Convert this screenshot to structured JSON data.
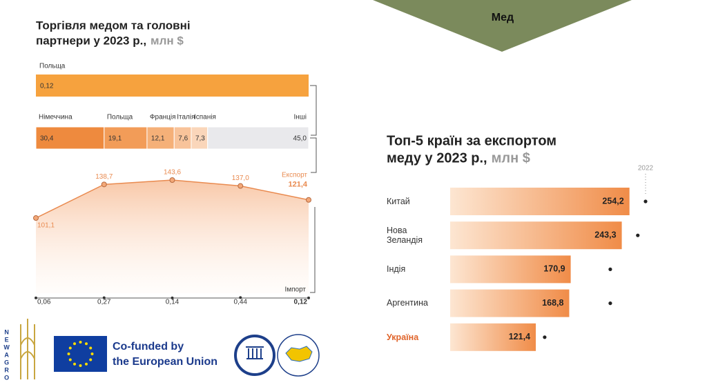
{
  "header": {
    "title": "Мед"
  },
  "chart_data": [
    {
      "type": "line",
      "title_lines": [
        "Торгівля медом та головні",
        "партнери у 2023 р.,"
      ],
      "title_unit": "млн $",
      "import_partners": {
        "categories": [
          "Польща"
        ],
        "values": [
          0.12
        ],
        "value_labels": [
          "0,12"
        ],
        "colors": [
          "#f6a23e"
        ]
      },
      "export_partners": {
        "categories": [
          "Німеччина",
          "Польща",
          "Франція",
          "Італія",
          "Іспанія",
          "Інші"
        ],
        "values": [
          30.4,
          19.1,
          12.1,
          7.6,
          7.3,
          45.0
        ],
        "value_labels": [
          "30,4",
          "19,1",
          "12,1",
          "7,6",
          "7,3",
          "45,0"
        ],
        "colors": [
          "#ee8a3e",
          "#f29c58",
          "#f5b078",
          "#f8c39a",
          "#fad6ba",
          "#e9e9ec"
        ]
      },
      "categories": [
        null,
        null,
        null,
        null,
        null
      ],
      "series": [
        {
          "name": "Експорт",
          "color": "#e98a4f",
          "values": [
            101.1,
            138.7,
            143.6,
            137.0,
            121.4
          ],
          "value_labels": [
            "101,1",
            "138,7",
            "143,6",
            "137,0",
            "121,4"
          ]
        },
        {
          "name": "Імпорт",
          "color": "#333333",
          "values": [
            0.06,
            0.27,
            0.14,
            0.44,
            0.12
          ],
          "value_labels": [
            "0,06",
            "0,27",
            "0,14",
            "0,44",
            "0,12"
          ]
        }
      ]
    },
    {
      "type": "bar",
      "orientation": "horizontal",
      "title_lines": [
        "Топ-5 країн за експортом",
        "меду у 2023 р.,"
      ],
      "title_unit": "млн $",
      "categories": [
        "Китай",
        "Нова Зеландія",
        "Індія",
        "Аргентина",
        "Україна"
      ],
      "highlight": 4,
      "highlight_color": "#e0642a",
      "series": [
        {
          "color": "#f0904c",
          "values": [
            254.2,
            243.3,
            170.9,
            168.8,
            121.4
          ],
          "value_labels": [
            "254,2",
            "243,3",
            "170,9",
            "168,8",
            "121,4"
          ]
        },
        {
          "name": "2022",
          "color": "#222222",
          "values": [
            277,
            266,
            227,
            227,
            134
          ]
        }
      ]
    }
  ],
  "footer": {
    "newagro": "NEWAGRO",
    "eu_lines": [
      "Co-funded by",
      "the European Union"
    ]
  }
}
